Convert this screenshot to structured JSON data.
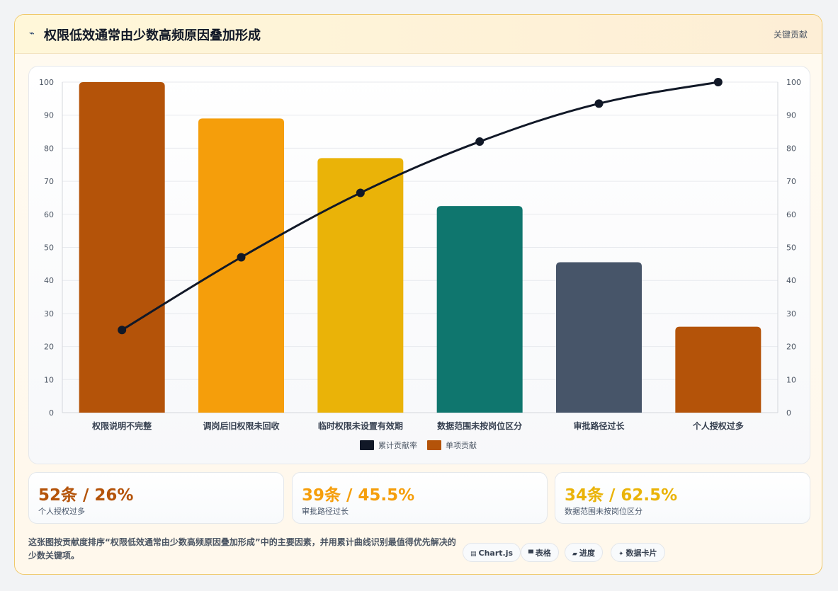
{
  "header": {
    "icon": "trend-icon",
    "icon_glyph": "⌁",
    "title": "权限低效通常由少数高频原因叠加形成",
    "tag": "关键贡献"
  },
  "chart_data": {
    "type": "bar",
    "title": "",
    "xlabel": "",
    "ylabel": "",
    "categories": [
      "权限说明不完整",
      "调岗后旧权限未回收",
      "临时权限未设置有效期",
      "数据范围未按岗位区分",
      "审批路径过长",
      "个人授权过多"
    ],
    "series": [
      {
        "name": "单项贡献",
        "type": "bar",
        "values": [
          100,
          89,
          77,
          62.5,
          45.5,
          26
        ],
        "colors": [
          "#b45309",
          "#f59e0b",
          "#eab308",
          "#0f766e",
          "#475569",
          "#b45309"
        ]
      },
      {
        "name": "累计贡献率",
        "type": "line",
        "values": [
          25,
          47,
          66.5,
          82,
          93.5,
          100
        ],
        "color": "#111827"
      }
    ],
    "ylim": [
      0,
      100
    ],
    "y_ticks": [
      0,
      10,
      20,
      30,
      40,
      50,
      60,
      70,
      80,
      90,
      100
    ],
    "y2lim": [
      0,
      100
    ],
    "y2_ticks": [
      0,
      10,
      20,
      30,
      40,
      50,
      60,
      70,
      80,
      90,
      100
    ],
    "grid": true,
    "legend_position": "bottom"
  },
  "stats": [
    {
      "value": "52条 / 26%",
      "label": "个人授权过多",
      "color": "#b45309"
    },
    {
      "value": "39条 / 45.5%",
      "label": "审批路径过长",
      "color": "#f59e0b"
    },
    {
      "value": "34条 / 62.5%",
      "label": "数据范围未按岗位区分",
      "color": "#eab308"
    }
  ],
  "description": "这张图按贡献度排序“权限低效通常由少数高频原因叠加形成”中的主要因素，并用累计曲线识别最值得优先解决的少数关键项。",
  "tags": [
    {
      "icon": "chart-icon",
      "glyph": "▤",
      "label": "Chart.js"
    },
    {
      "icon": "table-icon",
      "glyph": "▀",
      "label": "表格"
    },
    {
      "icon": "progress-icon",
      "glyph": "▰",
      "label": "进度"
    },
    {
      "icon": "sparkle-icon",
      "glyph": "✦",
      "label": "数据卡片"
    }
  ]
}
